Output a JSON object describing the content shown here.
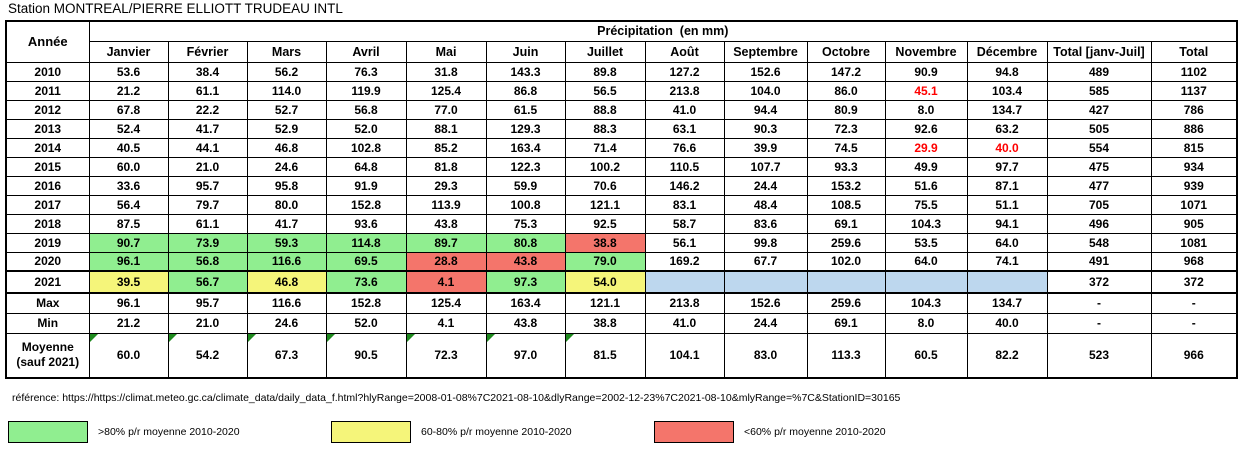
{
  "title": "Station MONTREAL/PIERRE ELLIOTT TRUDEAU INTL",
  "colors": {
    "green": "#90EE90",
    "yellow": "#F5F57A",
    "red": "#F4756B",
    "blue": "#BDD7EE",
    "red_text": "#FF0000",
    "triangle": "#1E8A1E"
  },
  "table": {
    "year_header": "Année",
    "group_header": "Précipitation  (en mm)",
    "columns": [
      "Janvier",
      "Février",
      "Mars",
      "Avril",
      "Mai",
      "Juin",
      "Juillet",
      "Août",
      "Septembre",
      "Octobre",
      "Novembre",
      "Décembre",
      "Total [janv-Juil]",
      "Total"
    ],
    "rows": [
      {
        "year": "2010",
        "cells": [
          "53.6",
          "38.4",
          "56.2",
          "76.3",
          "31.8",
          "143.3",
          "89.8",
          "127.2",
          "152.6",
          "147.2",
          "90.9",
          "94.8",
          "489",
          "1102"
        ]
      },
      {
        "year": "2011",
        "cells": [
          "21.2",
          "61.1",
          "114.0",
          "119.9",
          "125.4",
          "86.8",
          "56.5",
          "213.8",
          "104.0",
          "86.0",
          {
            "v": "45.1",
            "fg": "red_text"
          },
          "103.4",
          "585",
          "1137"
        ]
      },
      {
        "year": "2012",
        "cells": [
          "67.8",
          "22.2",
          "52.7",
          "56.8",
          "77.0",
          "61.5",
          "88.8",
          "41.0",
          "94.4",
          "80.9",
          "8.0",
          "134.7",
          "427",
          "786"
        ]
      },
      {
        "year": "2013",
        "cells": [
          "52.4",
          "41.7",
          "52.9",
          "52.0",
          "88.1",
          "129.3",
          "88.3",
          "63.1",
          "90.3",
          "72.3",
          "92.6",
          "63.2",
          "505",
          "886"
        ]
      },
      {
        "year": "2014",
        "cells": [
          "40.5",
          "44.1",
          "46.8",
          "102.8",
          "85.2",
          "163.4",
          "71.4",
          "76.6",
          "39.9",
          "74.5",
          {
            "v": "29.9",
            "fg": "red_text"
          },
          {
            "v": "40.0",
            "fg": "red_text"
          },
          "554",
          "815"
        ]
      },
      {
        "year": "2015",
        "cells": [
          "60.0",
          "21.0",
          "24.6",
          "64.8",
          "81.8",
          "122.3",
          "100.2",
          "110.5",
          "107.7",
          "93.3",
          "49.9",
          "97.7",
          "475",
          "934"
        ]
      },
      {
        "year": "2016",
        "cells": [
          "33.6",
          "95.7",
          "95.8",
          "91.9",
          "29.3",
          "59.9",
          "70.6",
          "146.2",
          "24.4",
          "153.2",
          "51.6",
          "87.1",
          "477",
          "939"
        ]
      },
      {
        "year": "2017",
        "cells": [
          "56.4",
          "79.7",
          "80.0",
          "152.8",
          "113.9",
          "100.8",
          "121.1",
          "83.1",
          "48.4",
          "108.5",
          "75.5",
          "51.1",
          "705",
          "1071"
        ]
      },
      {
        "year": "2018",
        "cells": [
          "87.5",
          "61.1",
          "41.7",
          "93.6",
          "43.8",
          "75.3",
          "92.5",
          "58.7",
          "83.6",
          "69.1",
          "104.3",
          "94.1",
          "496",
          "905"
        ]
      },
      {
        "year": "2019",
        "cells": [
          {
            "v": "90.7",
            "bg": "green"
          },
          {
            "v": "73.9",
            "bg": "green"
          },
          {
            "v": "59.3",
            "bg": "green"
          },
          {
            "v": "114.8",
            "bg": "green"
          },
          {
            "v": "89.7",
            "bg": "green"
          },
          {
            "v": "80.8",
            "bg": "green"
          },
          {
            "v": "38.8",
            "bg": "red"
          },
          "56.1",
          "99.8",
          "259.6",
          "53.5",
          "64.0",
          "548",
          "1081"
        ]
      },
      {
        "year": "2020",
        "cells": [
          {
            "v": "96.1",
            "bg": "green"
          },
          {
            "v": "56.8",
            "bg": "green"
          },
          {
            "v": "116.6",
            "bg": "green"
          },
          {
            "v": "69.5",
            "bg": "green"
          },
          {
            "v": "28.8",
            "bg": "red"
          },
          {
            "v": "43.8",
            "bg": "red"
          },
          {
            "v": "79.0",
            "bg": "green"
          },
          "169.2",
          "67.7",
          "102.0",
          "64.0",
          "74.1",
          "491",
          "968"
        ]
      },
      {
        "year": "2021",
        "highlight": true,
        "cells": [
          {
            "v": "39.5",
            "bg": "yellow"
          },
          {
            "v": "56.7",
            "bg": "green"
          },
          {
            "v": "46.8",
            "bg": "yellow"
          },
          {
            "v": "73.6",
            "bg": "green"
          },
          {
            "v": "4.1",
            "bg": "red"
          },
          {
            "v": "97.3",
            "bg": "green"
          },
          {
            "v": "54.0",
            "bg": "yellow"
          },
          {
            "v": "",
            "bg": "blue"
          },
          {
            "v": "",
            "bg": "blue"
          },
          {
            "v": "",
            "bg": "blue"
          },
          {
            "v": "",
            "bg": "blue"
          },
          {
            "v": "",
            "bg": "blue"
          },
          "372",
          "372"
        ]
      }
    ],
    "summary_rows": [
      {
        "label": "Max",
        "cells": [
          "96.1",
          "95.7",
          "116.6",
          "152.8",
          "125.4",
          "163.4",
          "121.1",
          "213.8",
          "152.6",
          "259.6",
          "104.3",
          "134.7",
          "-",
          "-"
        ]
      },
      {
        "label": "Min",
        "cells": [
          "21.2",
          "21.0",
          "24.6",
          "52.0",
          "4.1",
          "43.8",
          "38.8",
          "41.0",
          "24.4",
          "69.1",
          "8.0",
          "40.0",
          "-",
          "-"
        ]
      },
      {
        "label": "Moyenne (sauf 2021)",
        "tall": true,
        "cells": [
          {
            "v": "60.0",
            "tri": true
          },
          {
            "v": "54.2",
            "tri": true
          },
          {
            "v": "67.3",
            "tri": true
          },
          {
            "v": "90.5",
            "tri": true
          },
          {
            "v": "72.3",
            "tri": true
          },
          {
            "v": "97.0",
            "tri": true
          },
          {
            "v": "81.5",
            "tri": true
          },
          "104.1",
          "83.0",
          "113.3",
          "60.5",
          "82.2",
          "523",
          "966"
        ]
      }
    ]
  },
  "reference": "référence: https://https://climat.meteo.gc.ca/climate_data/daily_data_f.html?hlyRange=2008-01-08%7C2021-08-10&dlyRange=2002-12-23%7C2021-08-10&mlyRange=%7C&StationID=30165",
  "legend": {
    "items": [
      {
        "color": "green",
        "label": ">80% p/r moyenne 2010-2020"
      },
      {
        "color": "yellow",
        "label": "60-80% p/r moyenne 2010-2020"
      },
      {
        "color": "red",
        "label": "<60% p/r moyenne 2010-2020"
      }
    ]
  }
}
